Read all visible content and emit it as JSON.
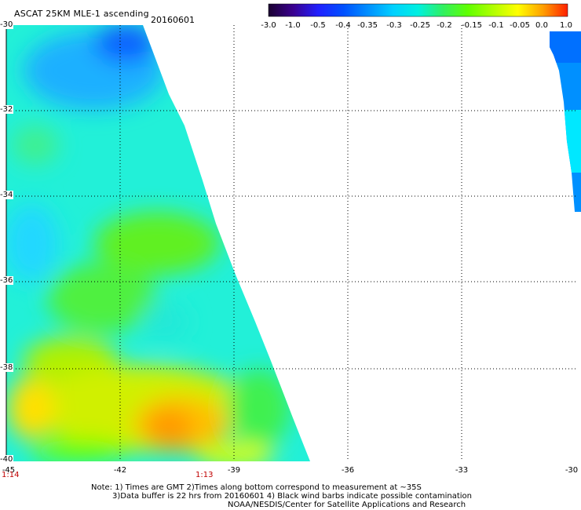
{
  "header": {
    "title": "ASCAT 25KM MLE-1 ascending",
    "date": "20160601"
  },
  "colorbar": {
    "labels": [
      "-3.0",
      "-1.0",
      "-0.5",
      "-0.4",
      "-0.35",
      "-0.3",
      "-0.25",
      "-0.2",
      "-0.15",
      "-0.1",
      "-0.05",
      "0.0",
      "1.0"
    ],
    "colors": [
      "#1a0030",
      "#3a0090",
      "#2020ff",
      "#0050ff",
      "#0090ff",
      "#00d0ff",
      "#00f0e0",
      "#30f060",
      "#60ff00",
      "#b0ff00",
      "#ffff00",
      "#ffa000",
      "#ff2000"
    ]
  },
  "axes": {
    "lat_labels": [
      "-30",
      "-32",
      "-34",
      "-36",
      "-38",
      "-40"
    ],
    "lon_labels": [
      "-45",
      "-42",
      "-39",
      "-36",
      "-33",
      "-30"
    ]
  },
  "times": {
    "left": "1:14",
    "mid": "1:13"
  },
  "notes": {
    "line1": "Note: 1) Times are GMT 2)Times along bottom correspond to measurement at ~35S",
    "line2": "3)Data buffer is 22 hrs from 20160601 4) Black wind barbs indicate possible contamination",
    "line3": "NOAA/NESDIS/Center for Satellite Applications and Research"
  }
}
